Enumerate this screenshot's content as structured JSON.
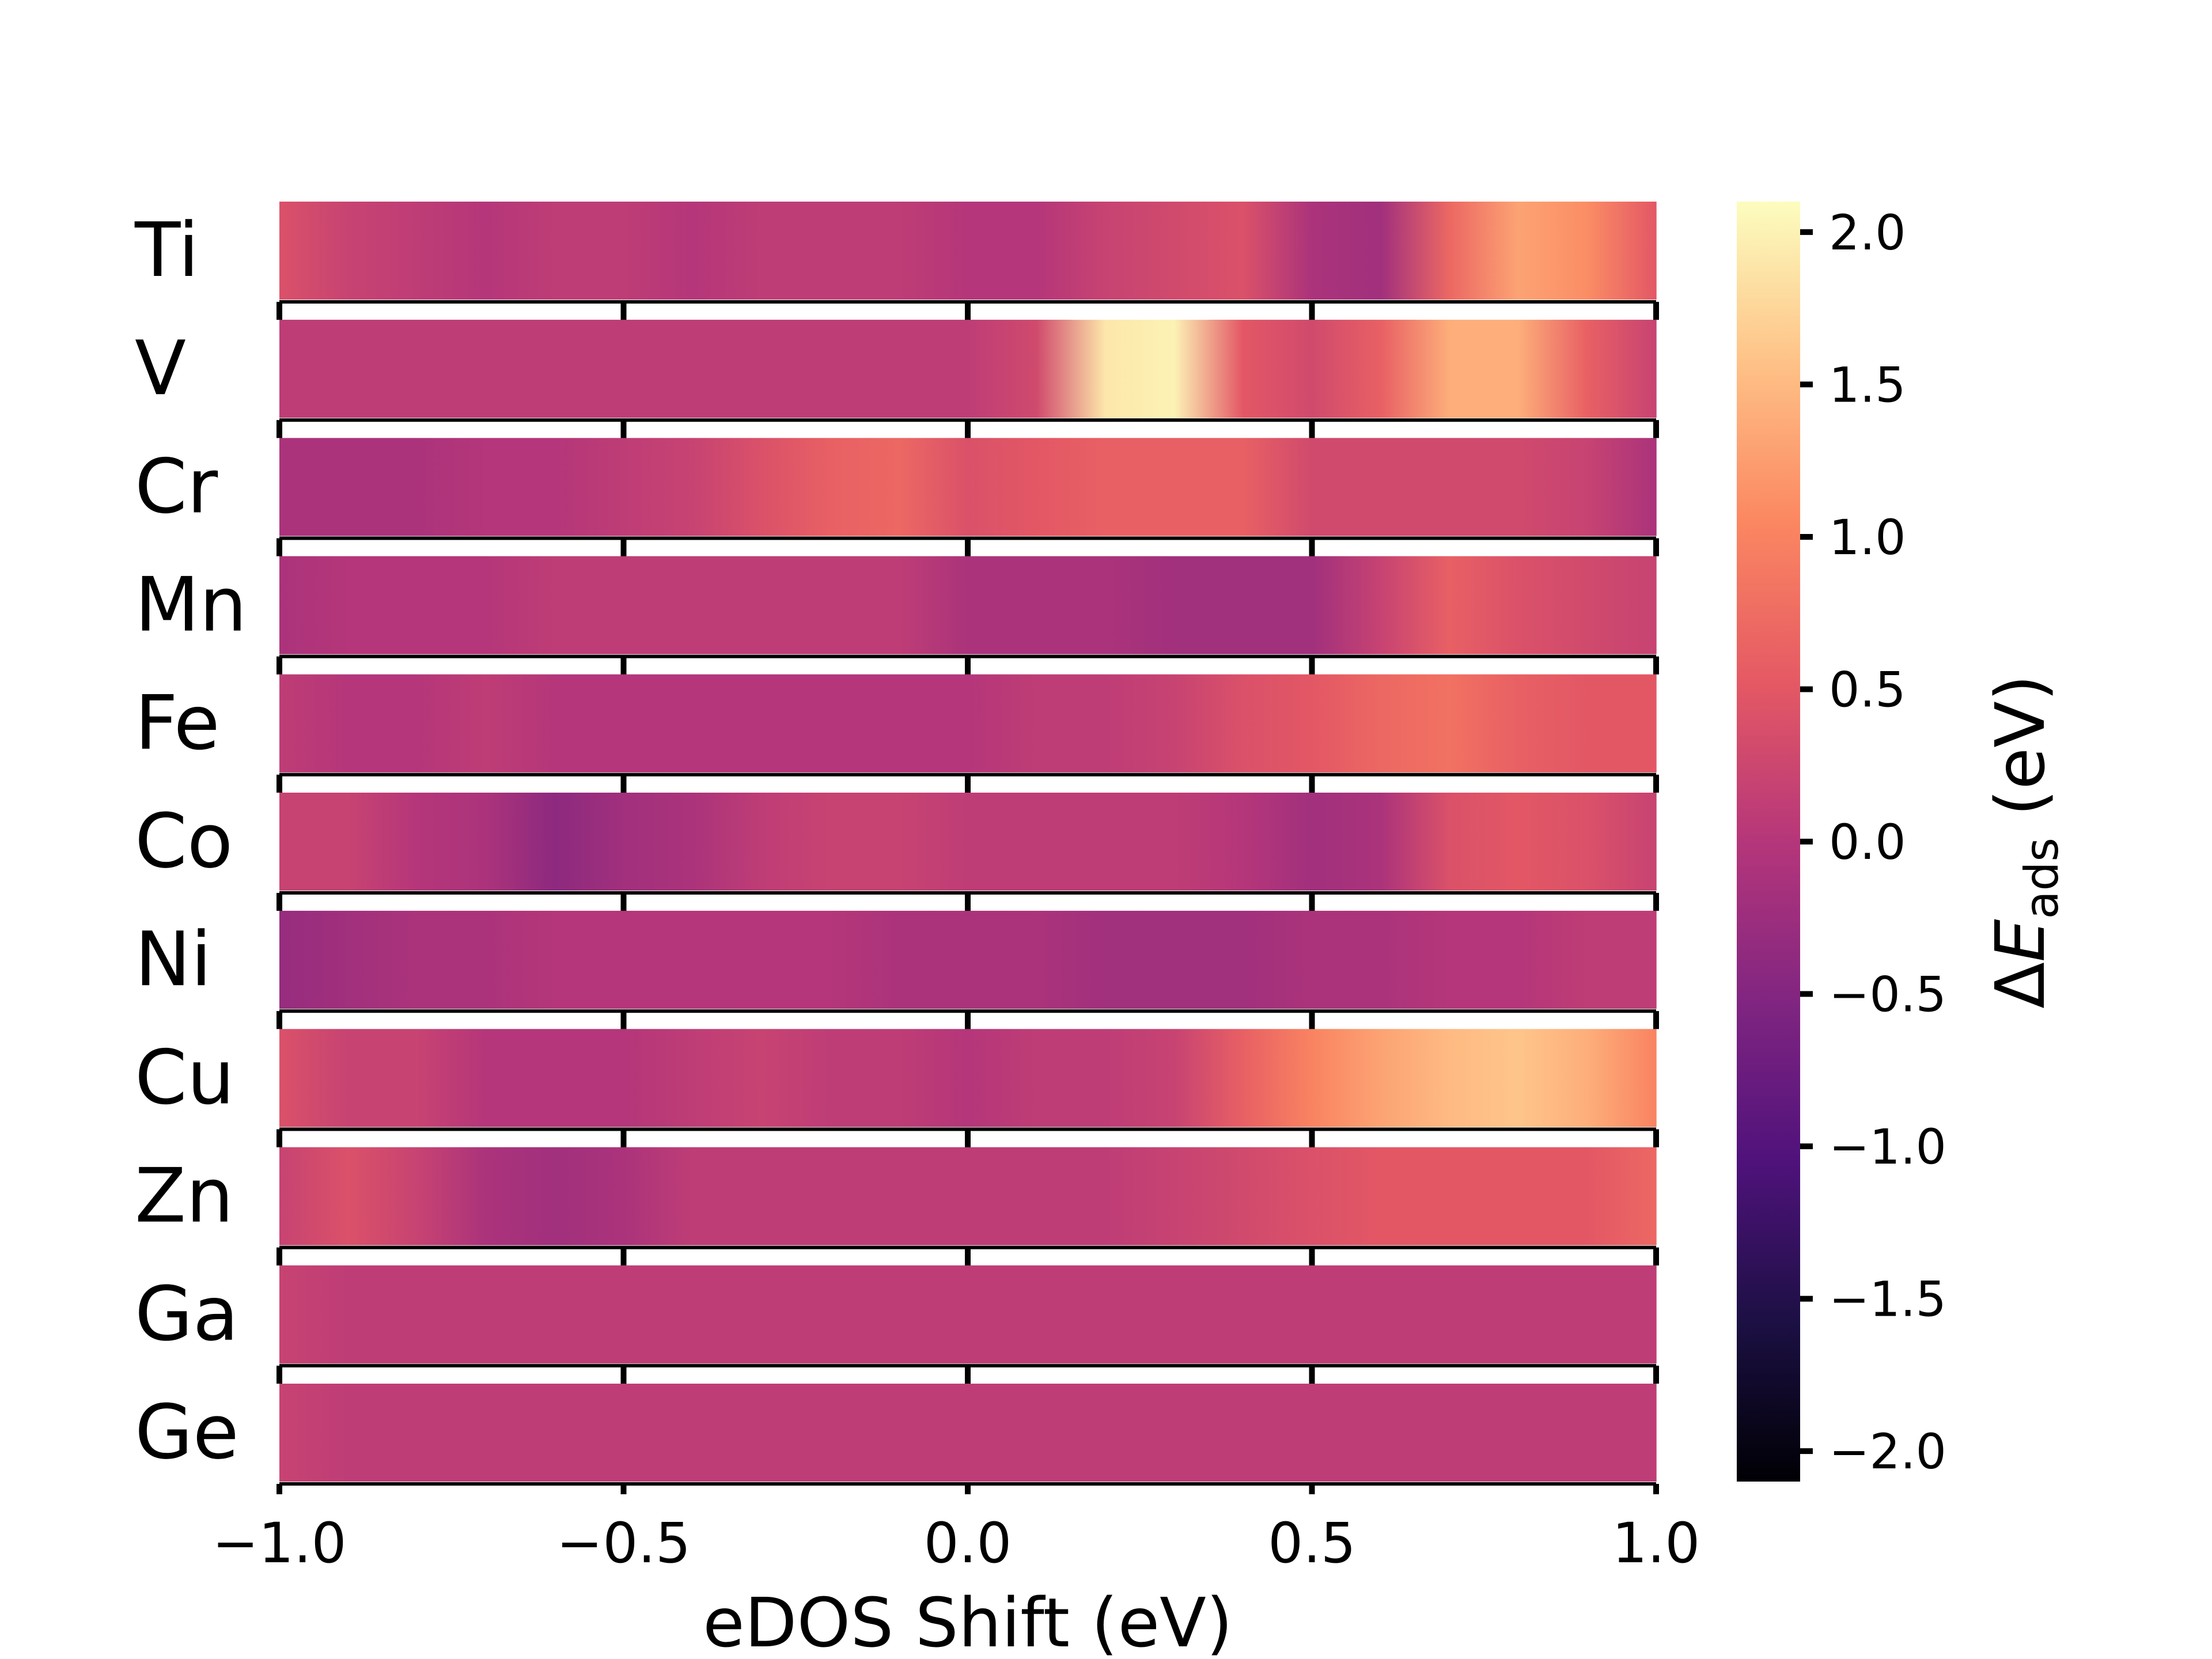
{
  "chart_data": {
    "type": "heatmap",
    "title": "",
    "xlabel": "eDOS Shift (eV)",
    "ylabel": "",
    "xlim": [
      -1.0,
      1.0
    ],
    "x_ticks": [
      "−1.0",
      "−0.5",
      "0.0",
      "0.5",
      "1.0"
    ],
    "x_tick_values": [
      -1.0,
      -0.5,
      0.0,
      0.5,
      1.0
    ],
    "rows": [
      "Ti",
      "V",
      "Cr",
      "Mn",
      "Fe",
      "Co",
      "Ni",
      "Cu",
      "Zn",
      "Ga",
      "Ge"
    ],
    "x": [
      -1.0,
      -0.9,
      -0.8,
      -0.7,
      -0.6,
      -0.5,
      -0.4,
      -0.3,
      -0.2,
      -0.1,
      0.0,
      0.1,
      0.2,
      0.3,
      0.4,
      0.5,
      0.6,
      0.7,
      0.8,
      0.9,
      1.0
    ],
    "values": [
      [
        0.4,
        0.2,
        0.1,
        0.0,
        0.1,
        0.1,
        0.0,
        0.1,
        0.1,
        0.1,
        0.0,
        0.0,
        0.2,
        0.3,
        0.4,
        -0.1,
        -0.2,
        0.7,
        1.3,
        1.1,
        0.5
      ],
      [
        0.1,
        0.1,
        0.1,
        0.1,
        0.1,
        0.1,
        0.1,
        0.1,
        0.1,
        0.1,
        0.1,
        0.3,
        1.9,
        2.0,
        0.5,
        0.3,
        0.6,
        1.4,
        1.4,
        0.6,
        0.2
      ],
      [
        -0.1,
        -0.1,
        -0.1,
        0.0,
        0.0,
        0.1,
        0.2,
        0.4,
        0.6,
        0.7,
        0.4,
        0.5,
        0.6,
        0.6,
        0.6,
        0.3,
        0.3,
        0.3,
        0.3,
        0.2,
        -0.1
      ],
      [
        -0.1,
        0.0,
        0.0,
        0.0,
        0.1,
        0.1,
        0.1,
        0.1,
        0.1,
        0.1,
        -0.1,
        -0.1,
        -0.1,
        -0.2,
        -0.2,
        -0.2,
        0.2,
        0.6,
        0.4,
        0.3,
        0.2
      ],
      [
        0.1,
        0.0,
        0.0,
        0.1,
        0.0,
        0.0,
        0.0,
        0.0,
        0.0,
        0.0,
        0.0,
        0.1,
        0.1,
        0.2,
        0.4,
        0.5,
        0.7,
        0.8,
        0.6,
        0.5,
        0.5
      ],
      [
        0.2,
        0.2,
        0.0,
        -0.1,
        -0.4,
        -0.2,
        -0.1,
        0.1,
        0.2,
        0.2,
        0.1,
        0.1,
        0.1,
        0.1,
        0.0,
        -0.2,
        -0.1,
        0.4,
        0.5,
        0.4,
        0.2
      ],
      [
        -0.3,
        -0.2,
        -0.1,
        -0.1,
        0.0,
        0.0,
        0.0,
        0.0,
        0.0,
        -0.1,
        -0.1,
        -0.1,
        -0.2,
        -0.2,
        -0.2,
        -0.1,
        -0.1,
        0.0,
        0.0,
        0.1,
        0.1
      ],
      [
        0.4,
        0.2,
        0.2,
        0.0,
        0.0,
        0.0,
        0.1,
        0.2,
        0.1,
        0.1,
        0.0,
        0.1,
        0.1,
        0.2,
        0.6,
        1.0,
        1.3,
        1.5,
        1.6,
        1.4,
        1.0
      ],
      [
        0.2,
        0.4,
        0.2,
        -0.1,
        -0.2,
        -0.1,
        0.1,
        0.1,
        0.1,
        0.1,
        0.1,
        0.1,
        0.1,
        0.2,
        0.3,
        0.4,
        0.5,
        0.5,
        0.5,
        0.5,
        0.7
      ],
      [
        0.2,
        0.1,
        0.1,
        0.1,
        0.1,
        0.1,
        0.1,
        0.1,
        0.1,
        0.1,
        0.1,
        0.1,
        0.1,
        0.1,
        0.1,
        0.1,
        0.1,
        0.1,
        0.1,
        0.1,
        0.1
      ],
      [
        0.2,
        0.1,
        0.1,
        0.1,
        0.1,
        0.1,
        0.1,
        0.1,
        0.1,
        0.1,
        0.1,
        0.1,
        0.1,
        0.1,
        0.1,
        0.1,
        0.1,
        0.1,
        0.1,
        0.1,
        0.1
      ]
    ],
    "colormap": "magma",
    "colorbar": {
      "label_prefix": "Δ",
      "label_symbol": "E",
      "label_subscript": "ads",
      "label_unit": " (eV)",
      "range": [
        -2.1,
        2.1
      ],
      "ticks": [
        "−2.0",
        "−1.5",
        "−1.0",
        "−0.5",
        "0.0",
        "0.5",
        "1.0",
        "1.5",
        "2.0"
      ],
      "tick_values": [
        -2.0,
        -1.5,
        -1.0,
        -0.5,
        0.0,
        0.5,
        1.0,
        1.5,
        2.0
      ]
    }
  }
}
